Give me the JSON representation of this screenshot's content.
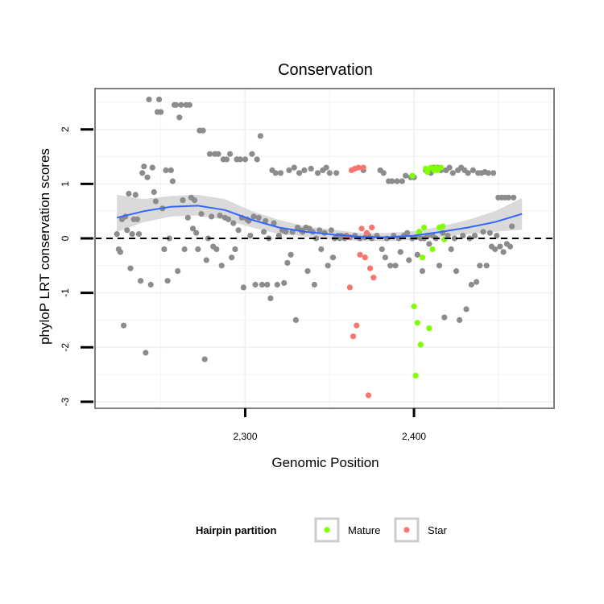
{
  "chart_data": {
    "type": "scatter",
    "title": "Conservation",
    "xlabel": "Genomic Position",
    "ylabel": "phyloP LRT conservation scores",
    "xlim": [
      2211,
      2483
    ],
    "ylim": [
      -3.12,
      2.75
    ],
    "x_ticks": [
      2300,
      2400
    ],
    "x_tick_labels": [
      "2,300",
      "2,400"
    ],
    "y_ticks": [
      -3,
      -2,
      -1,
      0,
      1,
      2
    ],
    "y_tick_labels": [
      "-3",
      "-2",
      "-1",
      "0",
      "1",
      "2"
    ],
    "reference_line": {
      "y": 0,
      "style": "dashed"
    },
    "legend": {
      "title": "Hairpin partition",
      "position": "bottom",
      "entries": [
        {
          "label": "Mature",
          "color": "#7FFF00"
        },
        {
          "label": "Star",
          "color": "#F8766D"
        }
      ]
    },
    "colors": {
      "other": "#8c8c8c",
      "Mature": "#7FFF00",
      "Star": "#F8766D",
      "smooth": "#3366FF",
      "ribbon": "#d3d3d3",
      "panel_border": "#7f7f7f",
      "grid": "#f2f2f2"
    },
    "series": [
      {
        "name": "Other",
        "points": [
          [
            2224,
            0.08
          ],
          [
            2225,
            -0.2
          ],
          [
            2226,
            -0.25
          ],
          [
            2227,
            0.35
          ],
          [
            2228,
            -1.6
          ],
          [
            2229,
            0.4
          ],
          [
            2230,
            0.15
          ],
          [
            2231,
            0.82
          ],
          [
            2232,
            -0.55
          ],
          [
            2233,
            0.08
          ],
          [
            2234,
            0.35
          ],
          [
            2235,
            0.8
          ],
          [
            2236,
            0.35
          ],
          [
            2237,
            0.08
          ],
          [
            2238,
            -0.78
          ],
          [
            2239,
            1.2
          ],
          [
            2240,
            1.32
          ],
          [
            2241,
            -2.1
          ],
          [
            2242,
            1.12
          ],
          [
            2243,
            2.55
          ],
          [
            2244,
            -0.85
          ],
          [
            2245,
            1.3
          ],
          [
            2246,
            0.85
          ],
          [
            2247,
            0.68
          ],
          [
            2248,
            2.32
          ],
          [
            2249,
            2.55
          ],
          [
            2250,
            2.32
          ],
          [
            2251,
            0.55
          ],
          [
            2252,
            -0.2
          ],
          [
            2253,
            1.25
          ],
          [
            2254,
            -0.78
          ],
          [
            2255,
            0.0
          ],
          [
            2256,
            1.25
          ],
          [
            2257,
            1.05
          ],
          [
            2258,
            2.45
          ],
          [
            2259,
            2.45
          ],
          [
            2260,
            -0.6
          ],
          [
            2261,
            2.22
          ],
          [
            2262,
            2.45
          ],
          [
            2263,
            0.7
          ],
          [
            2264,
            -0.2
          ],
          [
            2265,
            2.45
          ],
          [
            2266,
            0.38
          ],
          [
            2267,
            2.45
          ],
          [
            2268,
            0.75
          ],
          [
            2269,
            0.18
          ],
          [
            2270,
            0.7
          ],
          [
            2271,
            0.1
          ],
          [
            2272,
            -0.2
          ],
          [
            2273,
            1.98
          ],
          [
            2274,
            0.45
          ],
          [
            2275,
            1.98
          ],
          [
            2276,
            -2.22
          ],
          [
            2277,
            -0.4
          ],
          [
            2278,
            0.0
          ],
          [
            2279,
            1.55
          ],
          [
            2280,
            0.4
          ],
          [
            2281,
            -0.15
          ],
          [
            2282,
            1.55
          ],
          [
            2283,
            -0.2
          ],
          [
            2284,
            1.55
          ],
          [
            2285,
            0.42
          ],
          [
            2286,
            -0.5
          ],
          [
            2287,
            1.45
          ],
          [
            2288,
            0.38
          ],
          [
            2289,
            1.45
          ],
          [
            2290,
            0.35
          ],
          [
            2291,
            1.55
          ],
          [
            2292,
            -0.35
          ],
          [
            2293,
            0.28
          ],
          [
            2294,
            -0.2
          ],
          [
            2295,
            1.45
          ],
          [
            2296,
            0.15
          ],
          [
            2297,
            1.45
          ],
          [
            2298,
            0.38
          ],
          [
            2299,
            -0.9
          ],
          [
            2300,
            1.45
          ],
          [
            2301,
            0.35
          ],
          [
            2302,
            0.32
          ],
          [
            2303,
            0.05
          ],
          [
            2304,
            1.55
          ],
          [
            2305,
            0.4
          ],
          [
            2306,
            -0.85
          ],
          [
            2307,
            1.45
          ],
          [
            2308,
            0.38
          ],
          [
            2309,
            1.88
          ],
          [
            2310,
            -0.85
          ],
          [
            2311,
            0.12
          ],
          [
            2312,
            0.32
          ],
          [
            2313,
            -0.85
          ],
          [
            2314,
            0.0
          ],
          [
            2315,
            -1.1
          ],
          [
            2316,
            1.25
          ],
          [
            2317,
            0.28
          ],
          [
            2318,
            1.2
          ],
          [
            2319,
            -0.85
          ],
          [
            2320,
            0.05
          ],
          [
            2321,
            1.2
          ],
          [
            2322,
            0.15
          ],
          [
            2323,
            -0.82
          ],
          [
            2324,
            0.12
          ],
          [
            2325,
            -0.45
          ],
          [
            2326,
            1.25
          ],
          [
            2327,
            -0.3
          ],
          [
            2328,
            0.12
          ],
          [
            2329,
            1.3
          ],
          [
            2330,
            -1.5
          ],
          [
            2331,
            0.2
          ],
          [
            2332,
            1.2
          ],
          [
            2333,
            0.15
          ],
          [
            2334,
            0.12
          ],
          [
            2335,
            1.25
          ],
          [
            2336,
            0.2
          ],
          [
            2337,
            -0.6
          ],
          [
            2338,
            0.18
          ],
          [
            2339,
            1.28
          ],
          [
            2340,
            0.12
          ],
          [
            2341,
            -0.85
          ],
          [
            2342,
            0.0
          ],
          [
            2343,
            1.2
          ],
          [
            2344,
            0.15
          ],
          [
            2345,
            -0.2
          ],
          [
            2346,
            1.25
          ],
          [
            2347,
            0.1
          ],
          [
            2348,
            1.3
          ],
          [
            2349,
            -0.5
          ],
          [
            2350,
            1.2
          ],
          [
            2351,
            0.15
          ],
          [
            2352,
            -0.35
          ],
          [
            2353,
            0.0
          ],
          [
            2354,
            1.2
          ],
          [
            2355,
            0.05
          ],
          [
            2356,
            0.0
          ],
          [
            2357,
            0.05
          ],
          [
            2358,
            0.02
          ],
          [
            2359,
            0.0
          ],
          [
            2360,
            0.05
          ],
          [
            2362,
            0.02
          ],
          [
            2365,
            0.05
          ],
          [
            2368,
            0.0
          ],
          [
            2370,
            1.25
          ],
          [
            2371,
            0.02
          ],
          [
            2373,
            0.05
          ],
          [
            2375,
            0.0
          ],
          [
            2378,
            0.05
          ],
          [
            2380,
            1.25
          ],
          [
            2381,
            -0.2
          ],
          [
            2382,
            1.2
          ],
          [
            2383,
            -0.35
          ],
          [
            2384,
            0.0
          ],
          [
            2385,
            1.05
          ],
          [
            2386,
            -0.5
          ],
          [
            2387,
            1.05
          ],
          [
            2388,
            0.05
          ],
          [
            2389,
            -0.5
          ],
          [
            2390,
            1.05
          ],
          [
            2391,
            0.0
          ],
          [
            2392,
            -0.25
          ],
          [
            2393,
            1.05
          ],
          [
            2394,
            0.05
          ],
          [
            2395,
            1.15
          ],
          [
            2396,
            0.1
          ],
          [
            2397,
            -0.4
          ],
          [
            2398,
            1.12
          ],
          [
            2399,
            0.0
          ],
          [
            2400,
            1.12
          ],
          [
            2401,
            0.02
          ],
          [
            2402,
            -0.3
          ],
          [
            2403,
            0.12
          ],
          [
            2404,
            0.0
          ],
          [
            2405,
            -0.6
          ],
          [
            2406,
            0.0
          ],
          [
            2407,
            1.25
          ],
          [
            2408,
            0.05
          ],
          [
            2409,
            -0.1
          ],
          [
            2410,
            1.2
          ],
          [
            2411,
            0.05
          ],
          [
            2412,
            1.3
          ],
          [
            2413,
            0.0
          ],
          [
            2414,
            1.3
          ],
          [
            2415,
            -0.5
          ],
          [
            2416,
            1.25
          ],
          [
            2417,
            0.1
          ],
          [
            2418,
            -1.45
          ],
          [
            2419,
            1.25
          ],
          [
            2420,
            0.05
          ],
          [
            2421,
            1.3
          ],
          [
            2422,
            -0.2
          ],
          [
            2423,
            1.2
          ],
          [
            2424,
            0.0
          ],
          [
            2425,
            -0.6
          ],
          [
            2426,
            1.25
          ],
          [
            2427,
            -1.5
          ],
          [
            2428,
            1.3
          ],
          [
            2429,
            0.05
          ],
          [
            2430,
            1.25
          ],
          [
            2431,
            -1.3
          ],
          [
            2432,
            1.2
          ],
          [
            2433,
            0.0
          ],
          [
            2434,
            -0.85
          ],
          [
            2435,
            1.25
          ],
          [
            2436,
            0.05
          ],
          [
            2437,
            -0.8
          ],
          [
            2438,
            1.2
          ],
          [
            2439,
            -0.5
          ],
          [
            2440,
            1.2
          ],
          [
            2441,
            0.12
          ],
          [
            2442,
            1.22
          ],
          [
            2443,
            -0.5
          ],
          [
            2444,
            1.2
          ],
          [
            2445,
            0.1
          ],
          [
            2446,
            -0.15
          ],
          [
            2447,
            1.2
          ],
          [
            2448,
            -0.2
          ],
          [
            2449,
            0.05
          ],
          [
            2450,
            0.75
          ],
          [
            2451,
            -0.15
          ],
          [
            2452,
            0.75
          ],
          [
            2453,
            -0.25
          ],
          [
            2454,
            0.75
          ],
          [
            2455,
            -0.1
          ],
          [
            2456,
            0.75
          ],
          [
            2457,
            -0.15
          ],
          [
            2458,
            0.22
          ],
          [
            2459,
            0.75
          ]
        ]
      },
      {
        "name": "Star",
        "points": [
          [
            2361,
            0.02
          ],
          [
            2362,
            -0.9
          ],
          [
            2363,
            1.25
          ],
          [
            2364,
            -1.8
          ],
          [
            2365,
            1.28
          ],
          [
            2366,
            -1.6
          ],
          [
            2367,
            1.3
          ],
          [
            2368,
            -0.3
          ],
          [
            2369,
            0.18
          ],
          [
            2370,
            1.3
          ],
          [
            2371,
            -0.35
          ],
          [
            2372,
            0.1
          ],
          [
            2373,
            -2.88
          ],
          [
            2374,
            -0.55
          ],
          [
            2375,
            0.2
          ],
          [
            2376,
            -0.72
          ]
        ]
      },
      {
        "name": "Mature",
        "points": [
          [
            2399,
            1.15
          ],
          [
            2400,
            -1.25
          ],
          [
            2401,
            -2.52
          ],
          [
            2402,
            -1.55
          ],
          [
            2403,
            0.12
          ],
          [
            2404,
            -1.95
          ],
          [
            2405,
            -0.35
          ],
          [
            2406,
            0.2
          ],
          [
            2407,
            1.28
          ],
          [
            2408,
            1.22
          ],
          [
            2409,
            -1.65
          ],
          [
            2410,
            1.3
          ],
          [
            2411,
            -0.2
          ],
          [
            2412,
            1.25
          ],
          [
            2413,
            1.3
          ],
          [
            2414,
            1.25
          ],
          [
            2415,
            0.2
          ],
          [
            2416,
            1.3
          ],
          [
            2417,
            0.22
          ],
          [
            2418,
            -0.02
          ]
        ]
      }
    ],
    "smooth": {
      "x": [
        2224,
        2240,
        2256,
        2272,
        2288,
        2304,
        2320,
        2336,
        2352,
        2368,
        2384,
        2400,
        2416,
        2432,
        2448,
        2464
      ],
      "y": [
        0.38,
        0.5,
        0.58,
        0.6,
        0.52,
        0.34,
        0.2,
        0.12,
        0.07,
        0.03,
        0.02,
        0.05,
        0.12,
        0.2,
        0.3,
        0.45
      ],
      "lower": [
        0.12,
        0.3,
        0.4,
        0.42,
        0.34,
        0.2,
        0.08,
        0.03,
        -0.02,
        -0.05,
        -0.05,
        -0.03,
        0.03,
        0.08,
        0.12,
        0.16
      ],
      "upper": [
        0.8,
        0.72,
        0.78,
        0.8,
        0.72,
        0.5,
        0.34,
        0.22,
        0.16,
        0.1,
        0.1,
        0.13,
        0.22,
        0.34,
        0.5,
        0.74
      ]
    }
  }
}
